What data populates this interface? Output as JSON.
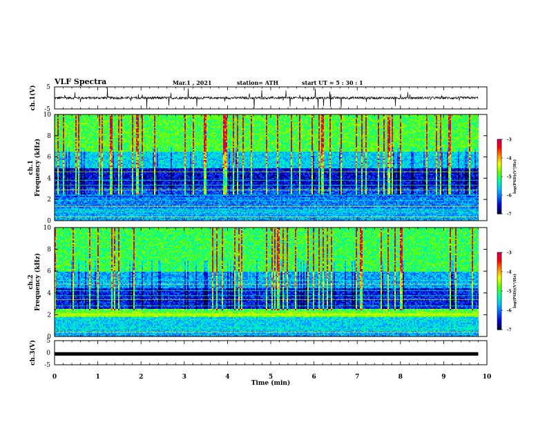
{
  "header": {
    "title": "VLF Spectra",
    "date": "Mar.1  , 2021",
    "station": "station= ATH",
    "start": "start  UT =   5 : 30 : 1"
  },
  "colors": {
    "spectrogram_scale": [
      "#00003c",
      "#0000d0",
      "#0064ff",
      "#00c8ff",
      "#00ff9a",
      "#64ff00",
      "#f0ff00",
      "#ff8c00",
      "#ff0000",
      "#c80064"
    ],
    "trace": "#000000"
  },
  "chart_data": [
    {
      "type": "line",
      "ylabel": "ch.1(V)",
      "ylim": [
        -5,
        5
      ],
      "yticks": [
        "5",
        "-5"
      ],
      "xlim": [
        0,
        10
      ],
      "description_values": {
        "baseline": 0.0,
        "noise_amplitude": 1.0,
        "spike_max": 4.8
      }
    },
    {
      "type": "heatmap",
      "ylabel_top": "ch.1",
      "ylabel": "Frequency (kHz)",
      "ylim": [
        0,
        10
      ],
      "yticks": [
        "0",
        "2",
        "4",
        "6",
        "8",
        "10"
      ],
      "xlim": [
        0,
        10
      ],
      "data_end_min": 9.8,
      "colorbar": {
        "label": "log(PSD)(V²/Hz)",
        "range": [
          -7,
          -3
        ],
        "ticks": [
          "-3",
          "-4",
          "-5",
          "-6",
          "-7"
        ]
      }
    },
    {
      "type": "heatmap",
      "ylabel_top": "ch.2",
      "ylabel": "Frequency (kHz)",
      "ylim": [
        0,
        10
      ],
      "yticks": [
        "0",
        "2",
        "4",
        "6",
        "8",
        "10"
      ],
      "xlim": [
        0,
        10
      ],
      "data_end_min": 9.8,
      "colorbar": {
        "label": "log(PSD)(V²/Hz)",
        "range": [
          -7,
          -3
        ],
        "ticks": [
          "-3",
          "-4",
          "-5",
          "-6",
          "-7"
        ]
      }
    },
    {
      "type": "line",
      "ylabel": "ch.3(V)",
      "ylim": [
        -5,
        5
      ],
      "yticks": [
        "5",
        "0",
        "-5"
      ],
      "xlim": [
        0,
        10
      ],
      "description_values": {
        "constant_value": -0.5
      }
    }
  ],
  "xaxis": {
    "label": "Time (min)",
    "ticks": [
      "0",
      "1",
      "2",
      "3",
      "4",
      "5",
      "6",
      "7",
      "8",
      "9",
      "10"
    ]
  }
}
